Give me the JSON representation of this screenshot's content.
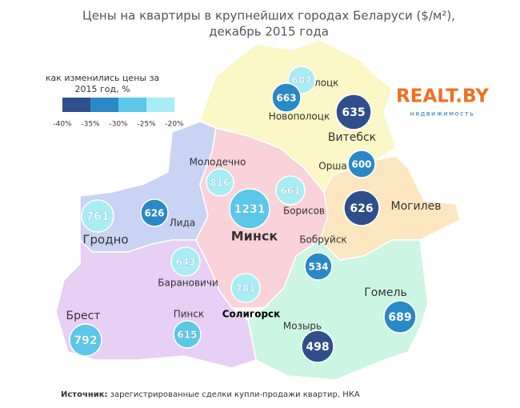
{
  "title": [
    "Цены на квартиры в крупнейших городах Беларуси ($/м²),",
    "декабрь 2015 года"
  ],
  "legend": {
    "title": [
      "как изменились цены за",
      "2015 год, %"
    ],
    "labels": [
      "-40%",
      "-35%",
      "-30%",
      "-25%",
      "-20%"
    ],
    "colors": [
      "#2e4f8a",
      "#2a88c6",
      "#5cc7e8",
      "#a8ecf5"
    ]
  },
  "logo": {
    "name": "REALT.BY",
    "tagline": "недвижимость"
  },
  "cities": [
    {
      "name": "Полоцк",
      "price": 687,
      "color": "#a8ecf5"
    },
    {
      "name": "Новополоцк",
      "price": 663,
      "color": "#2a88c6"
    },
    {
      "name": "Витебск",
      "price": 635,
      "color": "#2e4f8a"
    },
    {
      "name": "Орша",
      "price": 600,
      "color": "#2a88c6"
    },
    {
      "name": "Молодечно",
      "price": 816,
      "color": "#a8ecf5"
    },
    {
      "name": "Минск",
      "price": 1231,
      "color": "#5cc7e8"
    },
    {
      "name": "Борисов",
      "price": 661,
      "color": "#a8ecf5"
    },
    {
      "name": "Могилев",
      "price": 626,
      "color": "#2e4f8a"
    },
    {
      "name": "Гродно",
      "price": 761,
      "color": "#a8ecf5"
    },
    {
      "name": "Лида",
      "price": 626,
      "color": "#2a88c6"
    },
    {
      "name": "Бобруйск",
      "price": 534,
      "color": "#2a88c6"
    },
    {
      "name": "Барановичи",
      "price": 643,
      "color": "#a8ecf5"
    },
    {
      "name": "Солигорск",
      "price": 781,
      "color": "#a8ecf5"
    },
    {
      "name": "Брест",
      "price": 792,
      "color": "#5cc7e8"
    },
    {
      "name": "Пинск",
      "price": 615,
      "color": "#5cc7e8"
    },
    {
      "name": "Мозырь",
      "price": 498,
      "color": "#2e4f8a"
    },
    {
      "name": "Гомель",
      "price": 689,
      "color": "#2a88c6"
    }
  ],
  "source": {
    "label": "Источник:",
    "text": " зарегистрированные сделки купли-продажи квартир, НКА"
  }
}
